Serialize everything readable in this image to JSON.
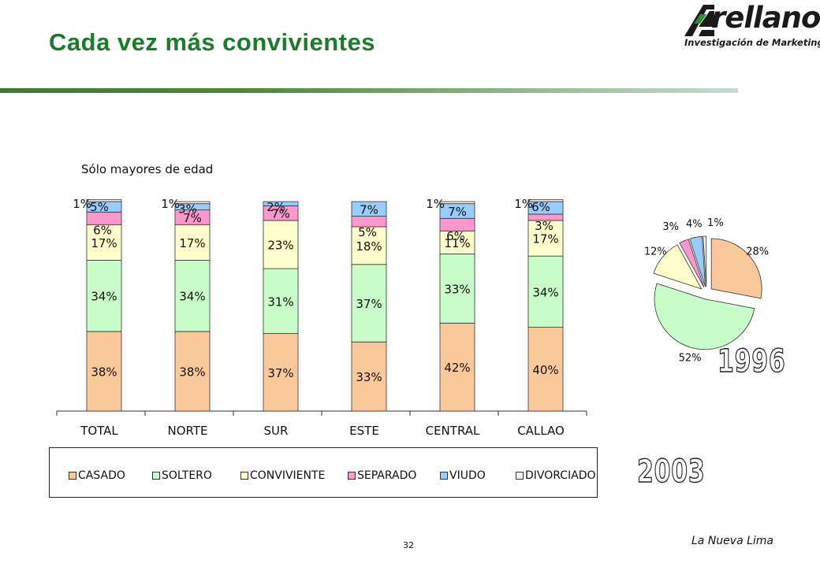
{
  "slide": {
    "title": "Cada vez más convivientes",
    "subtitle": "Sólo mayores de edad",
    "page_number": "32",
    "footer": "La Nueva Lima"
  },
  "logo": {
    "word": "rellano",
    "tagline": "Investigación de Marketing"
  },
  "colors": {
    "CASADO": "#fbc89b",
    "SOLTERO": "#c8fcc8",
    "CONVIVIENTE": "#fefecc",
    "SEPARADO": "#fb99cc",
    "VIUDO": "#98ccfb",
    "DIVORCIADO": "#f0f0ee",
    "title_green": "#1d7a2c"
  },
  "labels": {
    "year_pie": "1996",
    "year_bars": "2003"
  },
  "chart_data": [
    {
      "type": "bar",
      "stacked": true,
      "categories": [
        "TOTAL",
        "NORTE",
        "SUR",
        "ESTE",
        "CENTRAL",
        "CALLAO"
      ],
      "series": [
        {
          "name": "CASADO",
          "values": [
            38,
            38,
            37,
            33,
            42,
            40
          ],
          "labels": [
            "38%",
            "38%",
            "37%",
            "33%",
            "42%",
            "40%"
          ]
        },
        {
          "name": "SOLTERO",
          "values": [
            34,
            34,
            31,
            37,
            33,
            34
          ],
          "labels": [
            "34%",
            "34%",
            "31%",
            "37%",
            "33%",
            "34%"
          ]
        },
        {
          "name": "CONVIVIENTE",
          "values": [
            17,
            17,
            23,
            18,
            11,
            17
          ],
          "labels": [
            "17%",
            "17%",
            "23%",
            "18%",
            "11%",
            "17%"
          ]
        },
        {
          "name": "SEPARADO",
          "values": [
            6,
            7,
            7,
            5,
            6,
            3
          ],
          "labels": [
            "6%",
            "7%",
            "7%",
            "5%",
            "6%",
            "3%"
          ]
        },
        {
          "name": "VIUDO",
          "values": [
            5,
            3,
            2,
            7,
            7,
            6
          ],
          "labels": [
            "5%",
            "3%",
            "2%",
            "7%",
            "7%",
            "6%"
          ]
        },
        {
          "name": "DIVORCIADO",
          "values": [
            1,
            1,
            0,
            0,
            1,
            1
          ],
          "labels": [
            "1%",
            "1%",
            "",
            "",
            "1%",
            "1%"
          ]
        }
      ],
      "ylim": [
        0,
        100
      ],
      "legend": "bottom",
      "grid": false
    },
    {
      "type": "pie",
      "exploded": true,
      "slices": [
        {
          "name": "CASADO",
          "value": 28,
          "label": "28%"
        },
        {
          "name": "SOLTERO",
          "value": 52,
          "label": "52%"
        },
        {
          "name": "CONVIVIENTE",
          "value": 12,
          "label": "12%"
        },
        {
          "name": "SEPARADO",
          "value": 3,
          "label": "3%"
        },
        {
          "name": "VIUDO",
          "value": 4,
          "label": "4%"
        },
        {
          "name": "DIVORCIADO",
          "value": 1,
          "label": "1%"
        }
      ]
    }
  ]
}
